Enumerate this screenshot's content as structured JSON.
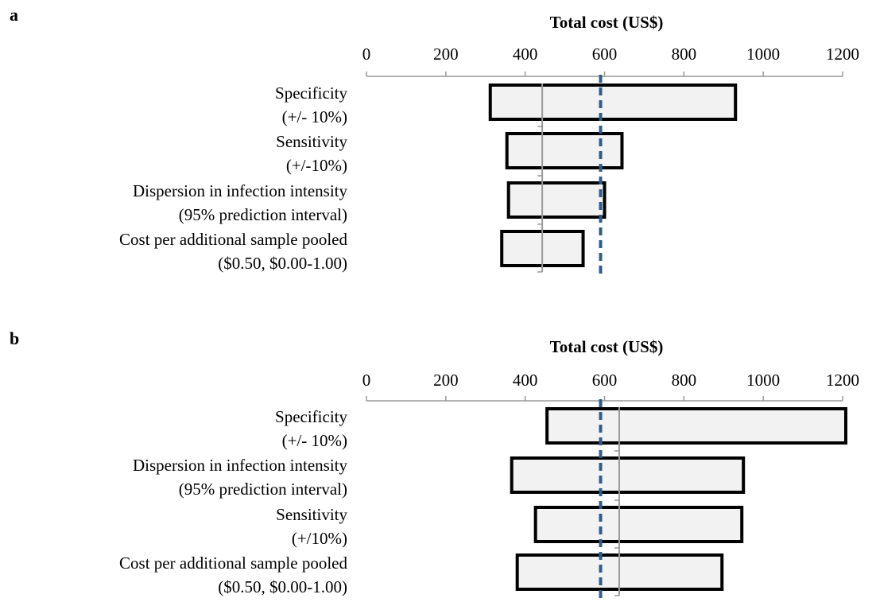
{
  "chart_data": [
    {
      "panel_label": "a",
      "type": "bar",
      "orientation": "horizontal",
      "subtype": "tornado",
      "xlabel": "Total cost (US$)",
      "xlim": [
        0,
        1200
      ],
      "xticks": [
        0,
        200,
        400,
        600,
        800,
        1000,
        1200
      ],
      "base_value": 443,
      "reference_value": 590,
      "categories": [
        [
          "Specificity",
          "(+/- 10%)"
        ],
        [
          "Sensitivity",
          "(+/-10%)"
        ],
        [
          "Dispersion in infection intensity",
          "(95% prediction interval)"
        ],
        [
          "Cost per additional sample pooled",
          "($0.50, $0.00-1.00)"
        ]
      ],
      "ranges": [
        [
          312,
          930
        ],
        [
          354,
          644
        ],
        [
          358,
          600
        ],
        [
          341,
          546
        ]
      ]
    },
    {
      "panel_label": "b",
      "type": "bar",
      "orientation": "horizontal",
      "subtype": "tornado",
      "xlabel": "Total cost (US$)",
      "xlim": [
        0,
        1200
      ],
      "xticks": [
        0,
        200,
        400,
        600,
        800,
        1000,
        1200
      ],
      "base_value": 637,
      "reference_value": 590,
      "categories": [
        [
          "Specificity",
          "(+/- 10%)"
        ],
        [
          "Dispersion in infection intensity",
          "(95% prediction interval)"
        ],
        [
          "Sensitivity",
          "(+/10%)"
        ],
        [
          "Cost per additional sample pooled",
          "($0.50, $0.00-1.00)"
        ]
      ],
      "ranges": [
        [
          455,
          1208
        ],
        [
          366,
          950
        ],
        [
          426,
          946
        ],
        [
          380,
          896
        ]
      ]
    }
  ],
  "colors": {
    "bar_fill": "#f2f2f2",
    "bar_stroke": "#000000",
    "axis": "#999999",
    "base_line": "#999999",
    "reference_line": "#2e5c8f"
  }
}
